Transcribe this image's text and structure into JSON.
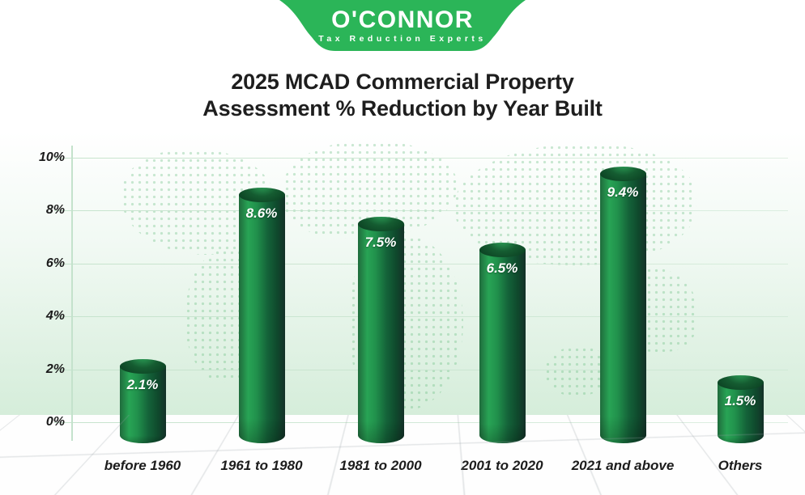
{
  "logo": {
    "name": "O'CONNOR",
    "tagline": "Tax Reduction Experts",
    "badge_color": "#2bb558"
  },
  "title": {
    "line1": "2025 MCAD Commercial Property",
    "line2": "Assessment % Reduction by Year Built"
  },
  "chart_data": {
    "type": "bar",
    "bar_style": "3d-cylinder",
    "title": "2025 MCAD Commercial Property Assessment % Reduction by Year Built",
    "categories": [
      "before 1960",
      "1961 to 1980",
      "1981 to 2000",
      "2001 to 2020",
      "2021 and above",
      "Others"
    ],
    "values": [
      2.1,
      8.6,
      7.5,
      6.5,
      9.4,
      1.5
    ],
    "value_labels": [
      "2.1%",
      "8.6%",
      "7.5%",
      "6.5%",
      "9.4%",
      "1.5%"
    ],
    "y_tick_values": [
      10,
      8,
      6,
      4,
      2,
      0
    ],
    "y_tick_labels": [
      "10%",
      "8%",
      "6%",
      "4%",
      "2%",
      "0%"
    ],
    "ylim": [
      0,
      10
    ],
    "xlabel": "",
    "ylabel": "",
    "grid": true,
    "legend": false,
    "colors": {
      "bar_highlight": "#28a455",
      "bar_shadow": "#143128",
      "cap_dark": "#093a1f",
      "gridline": "#c6e3cd",
      "band_green": "#d5edda",
      "accent_green": "#2bb558",
      "title_text": "#1e1e1e",
      "bar_label_text": "#ffffff"
    }
  }
}
